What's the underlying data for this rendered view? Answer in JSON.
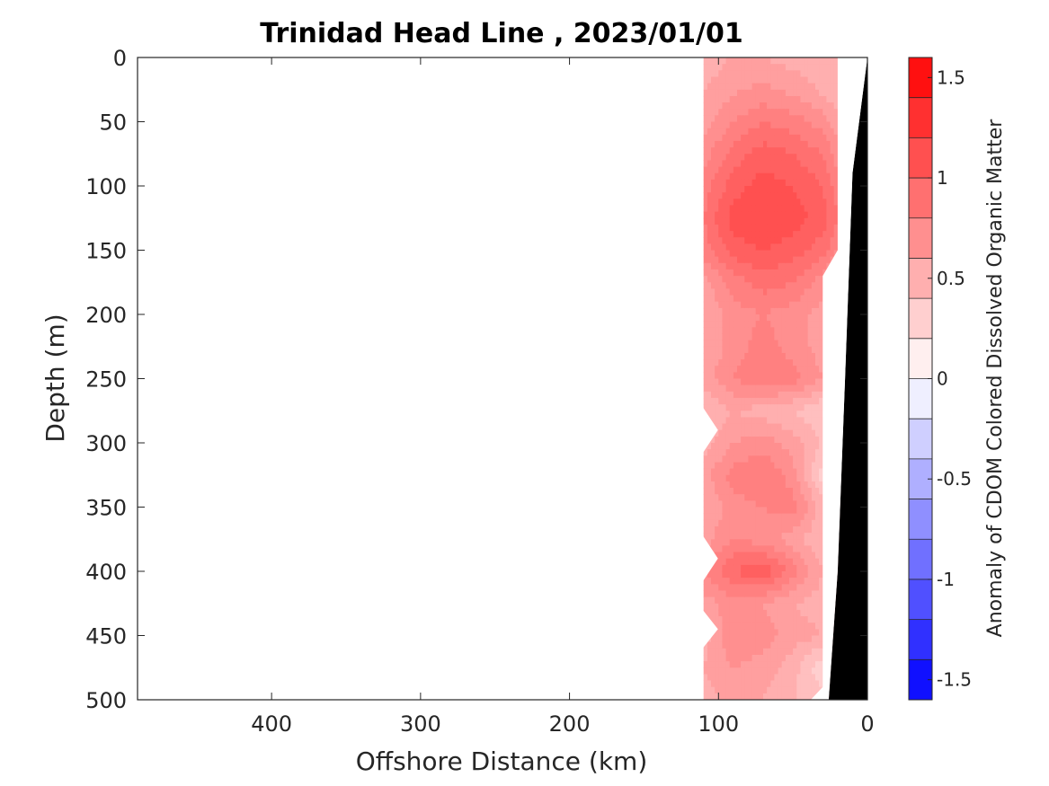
{
  "chart_data": {
    "type": "heatmap",
    "title": "Trinidad Head Line , 2023/01/01",
    "xlabel": "Offshore Distance (km)",
    "ylabel": "Depth (m)",
    "xlim": [
      490,
      0
    ],
    "ylim": [
      0,
      500
    ],
    "x_reversed": true,
    "y_reversed": true,
    "x_ticks": [
      400,
      300,
      200,
      100,
      0
    ],
    "y_ticks": [
      0,
      50,
      100,
      150,
      200,
      250,
      300,
      350,
      400,
      450,
      500
    ],
    "colorbar": {
      "label": "Anomaly of CDOM Colored Dissolved Organic Matter",
      "min": -1.6,
      "max": 1.6,
      "levels_step": 0.1,
      "ticks": [
        1.5,
        1,
        0.5,
        0,
        -0.5,
        -1,
        -1.5
      ],
      "colormap": "blue-white-red",
      "negative_color": "#0000ff",
      "zero_color": "#ffffff",
      "positive_color": "#ff0000"
    },
    "data_extent": {
      "x_range_km": [
        0,
        110
      ],
      "depth_range_m": [
        0,
        500
      ]
    },
    "grid": {
      "x_km": [
        110,
        90,
        70,
        50,
        30,
        20
      ],
      "depth_m": [
        0,
        10,
        30,
        50,
        75,
        100,
        125,
        150,
        175,
        200,
        225,
        250,
        275,
        300,
        325,
        350,
        375,
        400,
        425,
        450,
        475,
        500
      ]
    },
    "anomaly_values": [
      [
        0.5,
        0.55,
        0.55,
        0.5,
        0.45,
        0.45
      ],
      [
        0.5,
        0.6,
        0.6,
        0.55,
        0.5,
        0.45
      ],
      [
        0.55,
        0.65,
        0.7,
        0.65,
        0.55,
        0.5
      ],
      [
        0.6,
        0.75,
        0.85,
        0.8,
        0.7,
        0.6
      ],
      [
        0.7,
        0.9,
        1.0,
        0.95,
        0.85,
        0.7
      ],
      [
        0.8,
        1.0,
        1.1,
        1.05,
        0.95,
        0.8
      ],
      [
        0.85,
        1.1,
        1.15,
        1.1,
        1.0,
        0.85
      ],
      [
        0.8,
        1.0,
        1.05,
        1.0,
        0.9,
        0.75
      ],
      [
        0.6,
        0.8,
        0.9,
        0.85,
        0.7,
        0.55
      ],
      [
        0.55,
        0.7,
        0.75,
        0.7,
        0.6,
        0.45
      ],
      [
        0.55,
        0.7,
        0.8,
        0.7,
        0.6,
        0.4
      ],
      [
        0.6,
        0.75,
        0.85,
        0.8,
        0.65,
        0.45
      ],
      [
        0.45,
        0.55,
        0.5,
        0.45,
        0.35,
        0.2
      ],
      [
        0.5,
        0.65,
        0.7,
        0.6,
        0.45,
        0.25
      ],
      [
        0.6,
        0.8,
        0.85,
        0.7,
        0.3,
        0.1
      ],
      [
        0.55,
        0.7,
        0.75,
        0.8,
        0.5,
        0.3
      ],
      [
        0.6,
        0.75,
        0.7,
        0.6,
        0.45,
        0.3
      ],
      [
        0.75,
        0.95,
        1.05,
        0.8,
        0.55,
        0.4
      ],
      [
        0.6,
        0.7,
        0.65,
        0.55,
        0.5,
        0.4
      ],
      [
        0.5,
        0.75,
        0.7,
        0.6,
        0.55,
        0.45
      ],
      [
        0.55,
        0.65,
        0.6,
        0.5,
        0.25,
        0.35
      ],
      [
        0.5,
        0.6,
        0.55,
        0.45,
        0.4,
        0.3
      ]
    ]
  }
}
